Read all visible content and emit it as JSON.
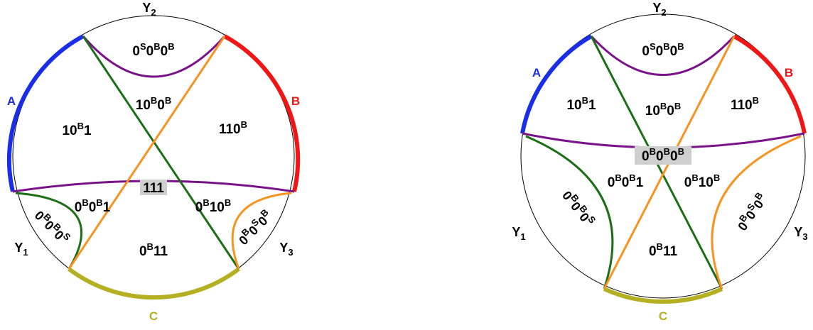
{
  "colors": {
    "A": "#1a2ee8",
    "B": "#f01616",
    "C": "#b4b022",
    "purple": "#7a138a",
    "green": "#1c6e17",
    "orange": "#f7931e",
    "highlight": "#cfcfcf"
  },
  "diagrams": [
    {
      "boundary_labels": {
        "A": "A",
        "B": "B",
        "C": "C",
        "Y1": "Y",
        "Y1_sub": "1",
        "Y2": "Y",
        "Y2_sub": "2",
        "Y3": "Y",
        "Y3_sub": "3"
      },
      "regions": [
        {
          "id": "top",
          "parts": [
            [
              "0",
              "S"
            ],
            [
              "0",
              "B"
            ],
            [
              "0",
              "B"
            ]
          ]
        },
        {
          "id": "left",
          "parts": [
            [
              "10",
              "B"
            ],
            [
              "1",
              ""
            ]
          ]
        },
        {
          "id": "center-top",
          "parts": [
            [
              "10",
              "B"
            ],
            [
              "0",
              "B"
            ]
          ]
        },
        {
          "id": "right",
          "parts": [
            [
              "110",
              "B"
            ]
          ]
        },
        {
          "id": "center",
          "parts": [
            [
              "111",
              ""
            ]
          ]
        },
        {
          "id": "lower-left",
          "parts": [
            [
              "0",
              "B"
            ],
            [
              "0",
              "B"
            ],
            [
              "1",
              ""
            ]
          ]
        },
        {
          "id": "lower-right",
          "parts": [
            [
              "0",
              "B"
            ],
            [
              "10",
              "B"
            ]
          ]
        },
        {
          "id": "bottom",
          "parts": [
            [
              "0",
              "B"
            ],
            [
              "11",
              ""
            ]
          ]
        },
        {
          "id": "corner-left",
          "parts": [
            [
              "0",
              "B"
            ],
            [
              "0",
              "B"
            ],
            [
              "0",
              "S"
            ]
          ]
        },
        {
          "id": "corner-right",
          "parts": [
            [
              "0",
              "B"
            ],
            [
              "0",
              "S"
            ],
            [
              "0",
              "B"
            ]
          ]
        }
      ]
    },
    {
      "boundary_labels": {
        "A": "A",
        "B": "B",
        "C": "C",
        "Y1": "Y",
        "Y1_sub": "1",
        "Y2": "Y",
        "Y2_sub": "2",
        "Y3": "Y",
        "Y3_sub": "3"
      },
      "regions": [
        {
          "id": "top",
          "parts": [
            [
              "0",
              "S"
            ],
            [
              "0",
              "B"
            ],
            [
              "0",
              "B"
            ]
          ]
        },
        {
          "id": "upper-left",
          "parts": [
            [
              "10",
              "B"
            ],
            [
              "1",
              ""
            ]
          ]
        },
        {
          "id": "upper-center",
          "parts": [
            [
              "10",
              "B"
            ],
            [
              "0",
              "B"
            ]
          ]
        },
        {
          "id": "upper-right",
          "parts": [
            [
              "110",
              "B"
            ]
          ]
        },
        {
          "id": "center",
          "parts": [
            [
              "0",
              "B"
            ],
            [
              "0",
              "B"
            ],
            [
              "0",
              "B"
            ]
          ]
        },
        {
          "id": "mid-left",
          "parts": [
            [
              "0",
              "B"
            ],
            [
              "0",
              "B"
            ],
            [
              "1",
              ""
            ]
          ]
        },
        {
          "id": "mid-right",
          "parts": [
            [
              "0",
              "B"
            ],
            [
              "10",
              "B"
            ]
          ]
        },
        {
          "id": "bottom",
          "parts": [
            [
              "0",
              "B"
            ],
            [
              "11",
              ""
            ]
          ]
        },
        {
          "id": "side-left",
          "parts": [
            [
              "0",
              "B"
            ],
            [
              "0",
              "B"
            ],
            [
              "0",
              "S"
            ]
          ]
        },
        {
          "id": "side-right",
          "parts": [
            [
              "0",
              "B"
            ],
            [
              "0",
              "S"
            ],
            [
              "0",
              "B"
            ]
          ]
        }
      ]
    }
  ]
}
